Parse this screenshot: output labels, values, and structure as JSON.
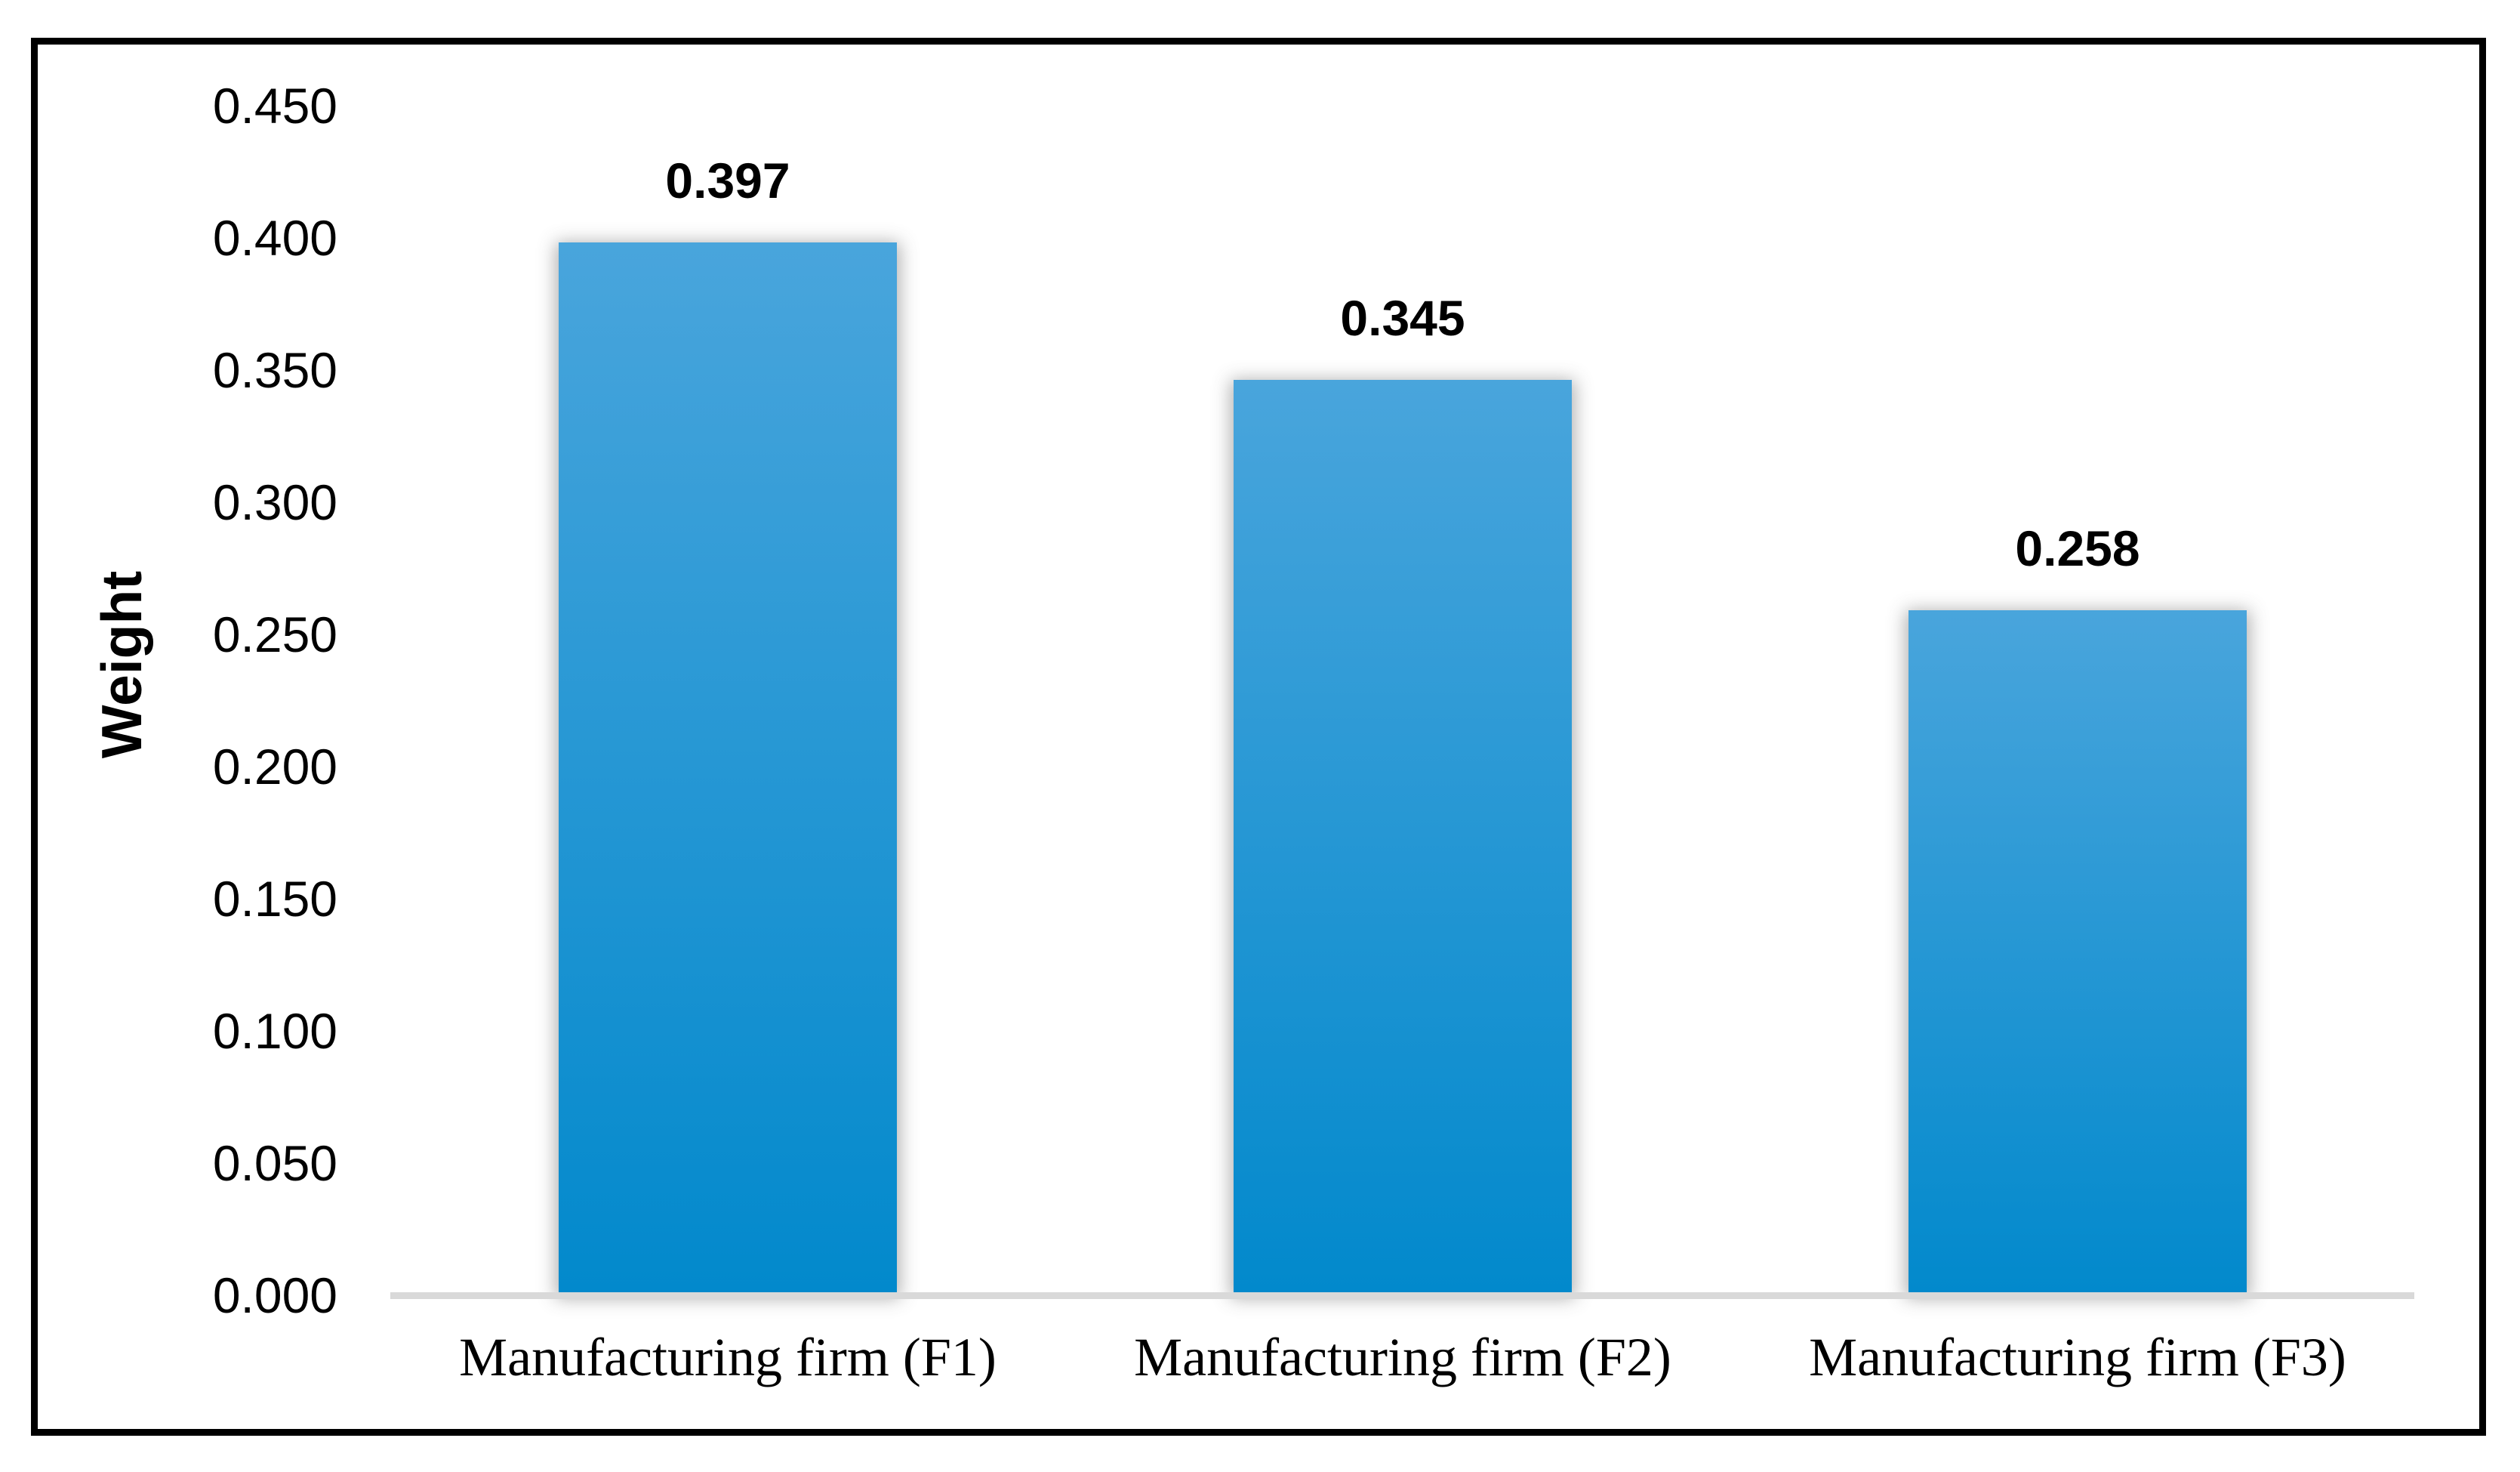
{
  "chart_data": {
    "type": "bar",
    "categories": [
      "Manufacturing firm (F1)",
      "Manufacturing firm (F2)",
      "Manufacturing firm (F3)"
    ],
    "values": [
      0.397,
      0.345,
      0.258
    ],
    "value_labels": [
      "0.397",
      "0.345",
      "0.258"
    ],
    "title": "",
    "xlabel": "",
    "ylabel": "Weight",
    "ylim": [
      0.0,
      0.45
    ],
    "ytick_step": 0.05,
    "ytick_labels": [
      "0.450",
      "0.400",
      "0.350",
      "0.300",
      "0.250",
      "0.200",
      "0.150",
      "0.100",
      "0.050",
      "0.000"
    ],
    "grid": false,
    "legend": "none",
    "bar_color_top": "#49A5DC",
    "bar_color_bottom": "#0289CC",
    "axis_line_color": "#D9D9D9",
    "frame_color": "#000000",
    "label_color": "#000000"
  }
}
